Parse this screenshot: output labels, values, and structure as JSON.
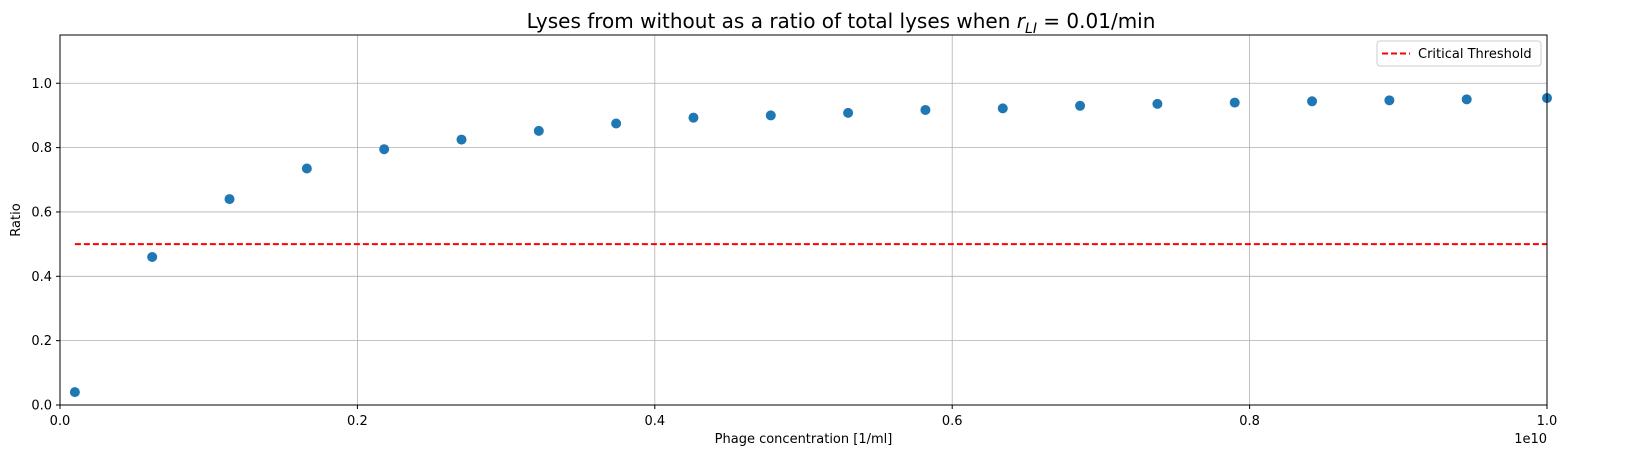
{
  "chart_data": {
    "type": "scatter",
    "title_prefix": "Lyses from without as a ratio of total lyses when ",
    "title_math_var": "r",
    "title_math_sub": "LI",
    "title_suffix": " = 0.01/min",
    "xlabel": "Phage concentration [1/ml]",
    "ylabel": "Ratio",
    "x_offset_label": "1e10",
    "xlim": [
      0,
      1.0
    ],
    "ylim": [
      0,
      1.15
    ],
    "xticks": [
      0.0,
      0.2,
      0.4,
      0.6,
      0.8,
      1.0
    ],
    "xtick_labels": [
      "0.0",
      "0.2",
      "0.4",
      "0.6",
      "0.8",
      "1.0"
    ],
    "yticks": [
      0.0,
      0.2,
      0.4,
      0.6,
      0.8,
      1.0
    ],
    "ytick_labels": [
      "0.0",
      "0.2",
      "0.4",
      "0.6",
      "0.8",
      "1.0"
    ],
    "grid": true,
    "legend_position": "top-right",
    "series": [
      {
        "marker": "circle",
        "color": "#1f77b4",
        "x": [
          0.01,
          0.062,
          0.114,
          0.166,
          0.218,
          0.27,
          0.322,
          0.374,
          0.426,
          0.478,
          0.53,
          0.582,
          0.634,
          0.686,
          0.738,
          0.79,
          0.842,
          0.894,
          0.946,
          1.0
        ],
        "y": [
          0.04,
          0.46,
          0.64,
          0.735,
          0.795,
          0.825,
          0.852,
          0.875,
          0.893,
          0.9,
          0.908,
          0.917,
          0.922,
          0.93,
          0.936,
          0.94,
          0.944,
          0.947,
          0.95,
          0.954
        ]
      }
    ],
    "threshold": {
      "name": "Critical Threshold",
      "y": 0.5,
      "x_range": [
        0.01,
        1.0
      ],
      "color": "#ff0000",
      "style": "dashed"
    }
  }
}
